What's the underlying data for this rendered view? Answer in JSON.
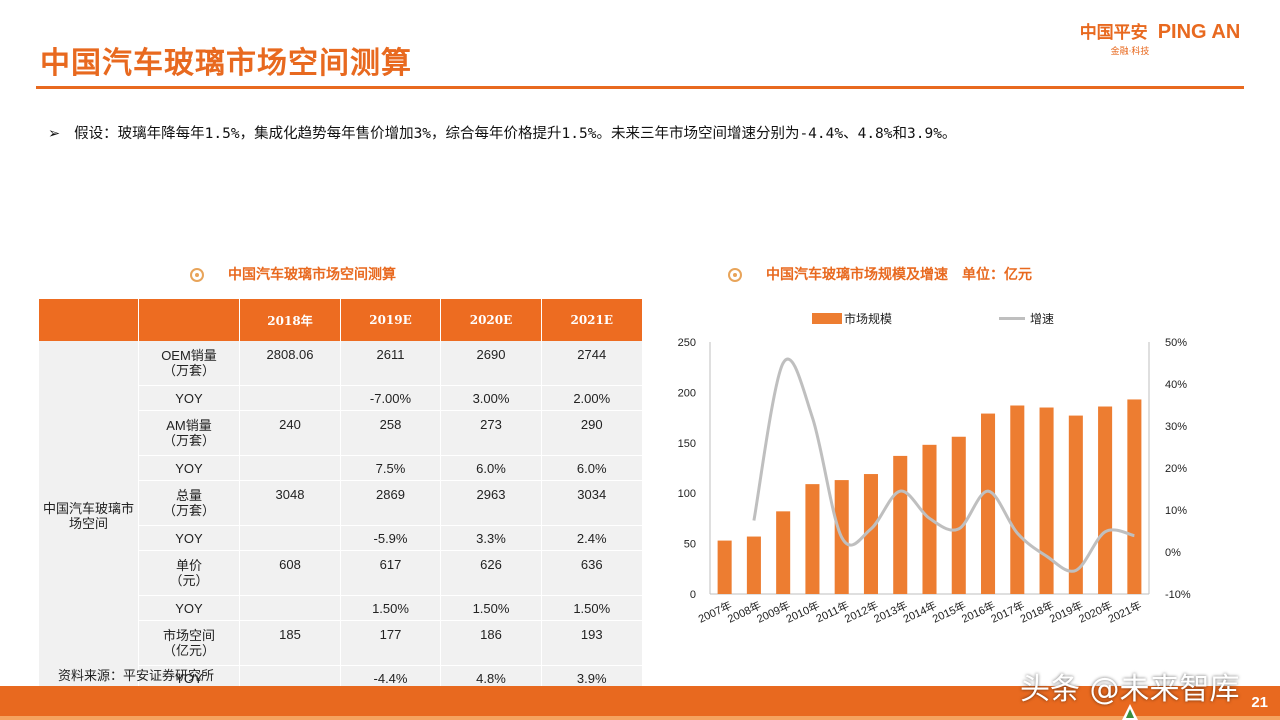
{
  "page": {
    "title": "中国汽车玻璃市场空间测算",
    "logo_cn": "中国平安",
    "logo_en": "PING AN",
    "logo_sub": "金融·科技",
    "bullet_icon": "arrow-right-icon",
    "bullet_text": "假设：玻璃年降每年1.5%，集成化趋势每年售价增加3%，综合每年价格提升1.5%。未来三年市场空间增速分别为-4.4%、4.8%和3.9%。",
    "source": "资料来源：平安证券研究所",
    "page_number": "21",
    "watermark": "头条 @未来智库",
    "accent_color": "#e8691f"
  },
  "table": {
    "caption": "中国汽车玻璃市场空间测算",
    "headers": [
      "",
      "",
      "2018年",
      "2019E",
      "2020E",
      "2021E"
    ],
    "group_label": "中国汽车玻璃市场空间",
    "rows": [
      {
        "label": "OEM销量\n（万套）",
        "values": [
          "2808.06",
          "2611",
          "2690",
          "2744"
        ]
      },
      {
        "label": "YOY",
        "values": [
          "",
          "-7.00%",
          "3.00%",
          "2.00%"
        ]
      },
      {
        "label": "AM销量\n（万套）",
        "values": [
          "240",
          "258",
          "273",
          "290"
        ]
      },
      {
        "label": "YOY",
        "values": [
          "",
          "7.5%",
          "6.0%",
          "6.0%"
        ]
      },
      {
        "label": "总量\n（万套）",
        "values": [
          "3048",
          "2869",
          "2963",
          "3034"
        ]
      },
      {
        "label": "YOY",
        "values": [
          "",
          "-5.9%",
          "3.3%",
          "2.4%"
        ]
      },
      {
        "label": "单价\n（元）",
        "values": [
          "608",
          "617",
          "626",
          "636"
        ]
      },
      {
        "label": "YOY",
        "values": [
          "",
          "1.50%",
          "1.50%",
          "1.50%"
        ]
      },
      {
        "label": "市场空间\n（亿元）",
        "values": [
          "185",
          "177",
          "186",
          "193"
        ]
      },
      {
        "label": "YOY",
        "values": [
          "",
          "-4.4%",
          "4.8%",
          "3.9%"
        ]
      }
    ]
  },
  "chart_data": {
    "type": "bar",
    "title": "中国汽车玻璃市场规模及增速　单位：亿元",
    "categories": [
      "2007年",
      "2008年",
      "2009年",
      "2010年",
      "2011年",
      "2012年",
      "2013年",
      "2014年",
      "2015年",
      "2016年",
      "2017年",
      "2018年",
      "2019年",
      "2020年",
      "2021年"
    ],
    "series": [
      {
        "name": "市场规模",
        "kind": "bar",
        "axis": "left",
        "color": "#ed7d31",
        "values": [
          53,
          57,
          82,
          109,
          113,
          119,
          137,
          148,
          156,
          179,
          187,
          185,
          177,
          186,
          193
        ]
      },
      {
        "name": "增速",
        "kind": "line",
        "axis": "right",
        "color": "#bfbfbf",
        "values": [
          null,
          7.5,
          45,
          32,
          3.5,
          5.5,
          14.5,
          8,
          5.5,
          14.5,
          4.5,
          -1,
          -4.4,
          4.8,
          3.9
        ]
      }
    ],
    "y_left": {
      "ticks": [
        0,
        50,
        100,
        150,
        200,
        250
      ],
      "ylim": [
        0,
        250
      ]
    },
    "y_right": {
      "ticks": [
        "-10%",
        "0%",
        "10%",
        "20%",
        "30%",
        "40%",
        "50%"
      ],
      "ylim": [
        -10,
        50
      ]
    },
    "legend_position": "top",
    "grid": false
  }
}
